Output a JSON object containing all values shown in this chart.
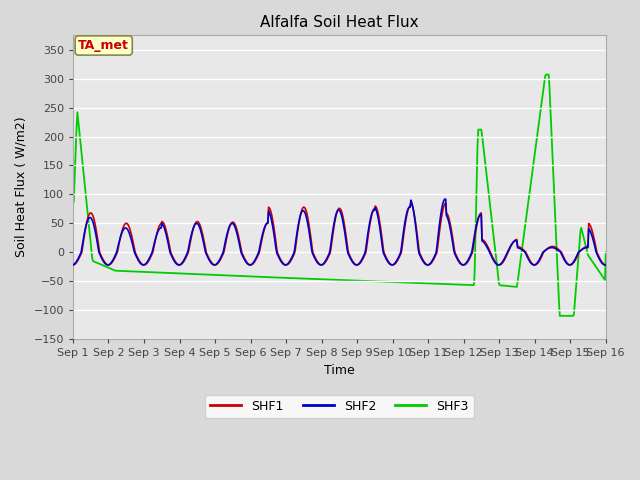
{
  "title": "Alfalfa Soil Heat Flux",
  "xlabel": "Time",
  "ylabel": "Soil Heat Flux ( W/m2)",
  "ylim": [
    -150,
    375
  ],
  "yticks": [
    -150,
    -100,
    -50,
    0,
    50,
    100,
    150,
    200,
    250,
    300,
    350
  ],
  "bg_color": "#d9d9d9",
  "plot_bg_color": "#e8e8e8",
  "grid_color": "#ffffff",
  "shf1_color": "#cc0000",
  "shf2_color": "#0000cc",
  "shf3_color": "#00cc00",
  "annotation_text": "TA_met",
  "annotation_bg": "#ffffcc",
  "annotation_border": "#888844",
  "annotation_text_color": "#cc0000",
  "legend_labels": [
    "SHF1",
    "SHF2",
    "SHF3"
  ],
  "figsize": [
    6.4,
    4.8
  ],
  "dpi": 100
}
